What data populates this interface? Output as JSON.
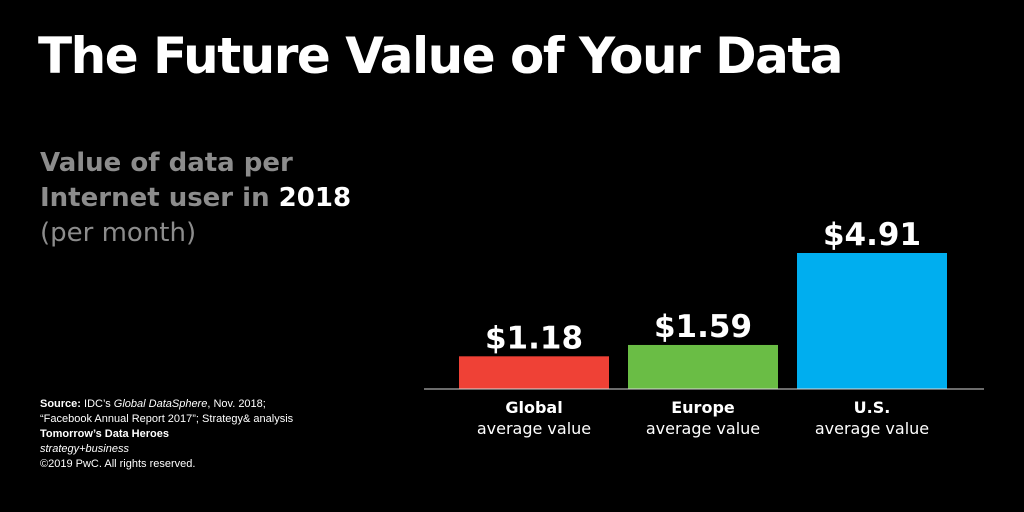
{
  "title": "The Future Value of Your Data",
  "subtitle": {
    "line1": "Value of data per",
    "line2_prefix": "Internet user in ",
    "year": "2018",
    "line3": "(per month)"
  },
  "source": {
    "label": "Source:",
    "text1_a": " IDC’s ",
    "text1_italic": "Global DataSphere",
    "text1_b": ", Nov. 2018;",
    "text2": "“Facebook Annual Report 2017”; Strategy& analysis",
    "article": "Tomorrow’s Data Heroes",
    "publication": "strategy+business",
    "copyright": "©2019 PwC. All rights reserved."
  },
  "chart_data": {
    "type": "bar",
    "categories": [
      "Global",
      "Europe",
      "U.S."
    ],
    "category_sublabels": [
      "average value",
      "average value",
      "average value"
    ],
    "values": [
      1.18,
      1.59,
      4.91
    ],
    "value_labels": [
      "$1.18",
      "$1.59",
      "$4.91"
    ],
    "colors": [
      "#ef4136",
      "#6abd45",
      "#00aeef"
    ],
    "ylim": [
      0,
      4.91
    ],
    "grid": false,
    "legend": "none"
  }
}
